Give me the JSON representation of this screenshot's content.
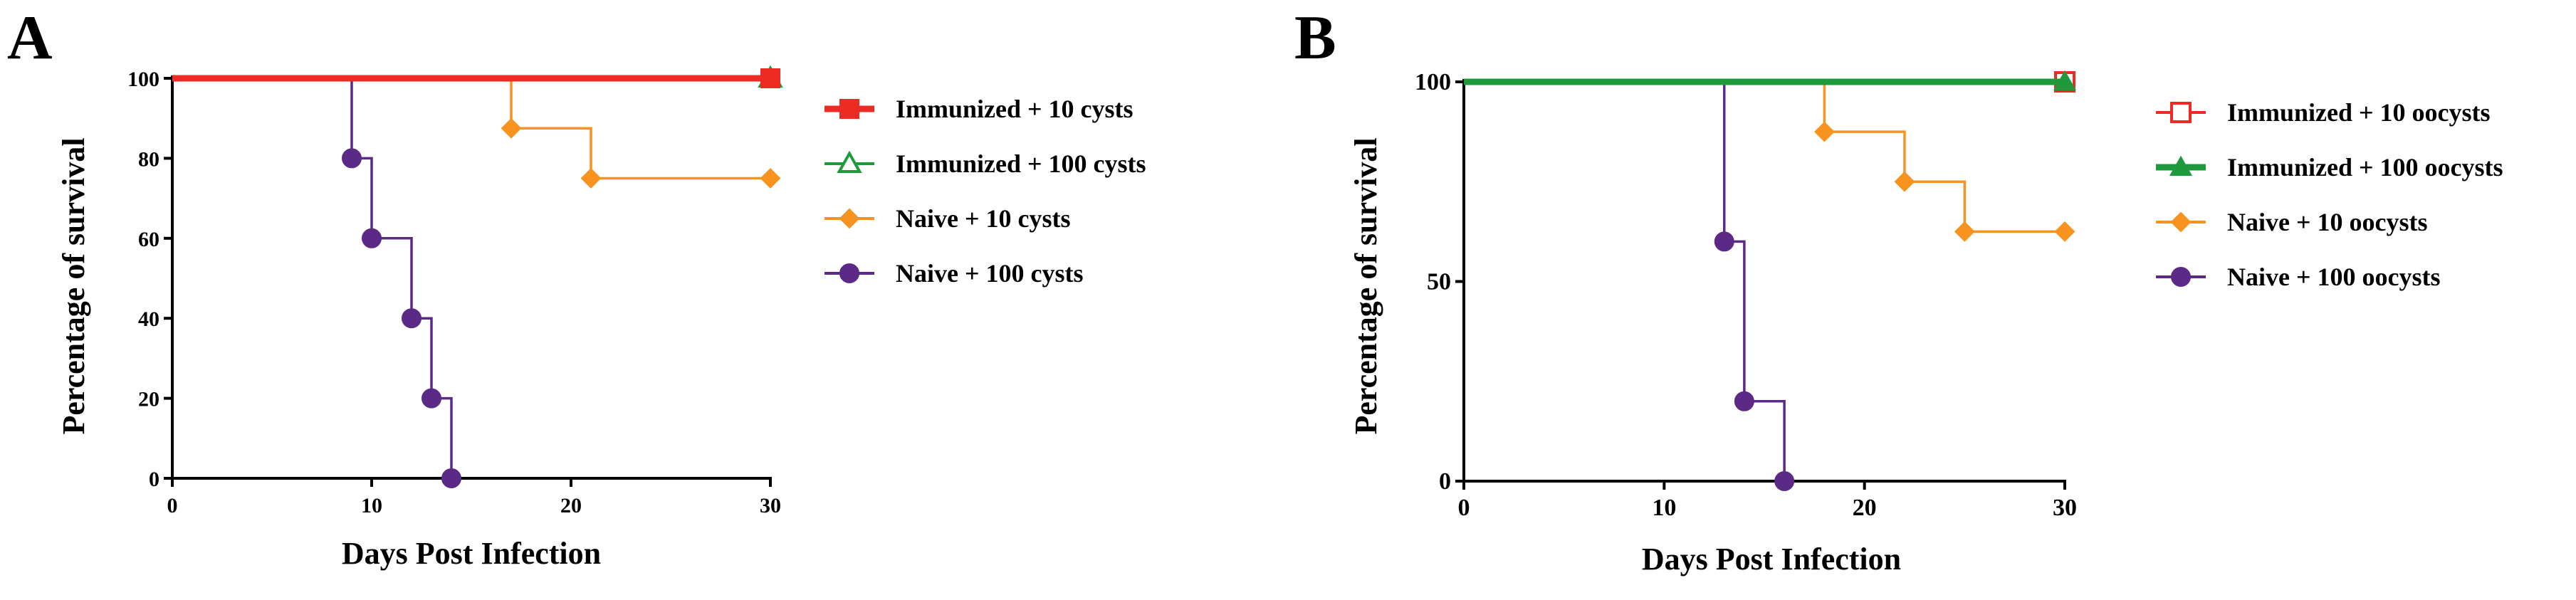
{
  "chart_data": [
    {
      "type": "line",
      "panel_label": "A",
      "xlabel": "Days Post Infection",
      "ylabel": "Percentage of survival",
      "xlim": [
        0,
        30
      ],
      "ylim": [
        0,
        100
      ],
      "xticks": [
        "0",
        "10",
        "20",
        "30"
      ],
      "yticks": [
        "0",
        "20",
        "40",
        "60",
        "80",
        "100"
      ],
      "legend_position": "right",
      "series": [
        {
          "name": "Immunized + 10 cysts",
          "color": "#ee2a24",
          "marker": "square",
          "filled": true,
          "line_weight": "thick",
          "x": [
            0,
            30
          ],
          "y": [
            100,
            100
          ],
          "markers": [
            [
              30,
              100
            ]
          ]
        },
        {
          "name": "Immunized + 100 cysts",
          "color": "#1e9a3c",
          "marker": "triangle",
          "filled": false,
          "line_weight": "normal",
          "x": [
            0,
            30
          ],
          "y": [
            100,
            100
          ],
          "markers": [
            [
              30,
              100
            ]
          ]
        },
        {
          "name": "Naive + 10 cysts",
          "color": "#f7931e",
          "marker": "diamond",
          "filled": true,
          "line_weight": "normal",
          "x": [
            0,
            17,
            21,
            30
          ],
          "y": [
            100,
            87.5,
            75,
            75
          ],
          "markers": [
            [
              17,
              87.5
            ],
            [
              21,
              75
            ],
            [
              30,
              75
            ]
          ]
        },
        {
          "name": "Naive + 100 cysts",
          "color": "#5b2a86",
          "marker": "circle",
          "filled": true,
          "line_weight": "normal",
          "x": [
            0,
            9,
            10,
            12,
            13,
            14
          ],
          "y": [
            100,
            80,
            60,
            40,
            20,
            0
          ],
          "markers": [
            [
              9,
              80
            ],
            [
              10,
              60
            ],
            [
              12,
              40
            ],
            [
              13,
              20
            ],
            [
              14,
              0
            ]
          ]
        }
      ]
    },
    {
      "type": "line",
      "panel_label": "B",
      "xlabel": "Days Post Infection",
      "ylabel": "Percentage of survival",
      "xlim": [
        0,
        30
      ],
      "ylim": [
        0,
        100
      ],
      "xticks": [
        "0",
        "10",
        "20",
        "30"
      ],
      "yticks": [
        "0",
        "50",
        "100"
      ],
      "legend_position": "right",
      "series": [
        {
          "name": "Immunized + 10 oocysts",
          "color": "#ee2a24",
          "marker": "square",
          "filled": false,
          "line_weight": "normal",
          "x": [
            0,
            30
          ],
          "y": [
            100,
            100
          ],
          "markers": [
            [
              30,
              100
            ]
          ]
        },
        {
          "name": "Immunized + 100 oocysts",
          "color": "#1e9a3c",
          "marker": "triangle",
          "filled": true,
          "line_weight": "thick",
          "x": [
            0,
            30
          ],
          "y": [
            100,
            100
          ],
          "markers": [
            [
              30,
              100
            ]
          ]
        },
        {
          "name": "Naive + 10 oocysts",
          "color": "#f7931e",
          "marker": "diamond",
          "filled": true,
          "line_weight": "normal",
          "x": [
            0,
            18,
            22,
            25,
            30
          ],
          "y": [
            100,
            87.5,
            75,
            62.5,
            62.5
          ],
          "markers": [
            [
              18,
              87.5
            ],
            [
              22,
              75
            ],
            [
              25,
              62.5
            ],
            [
              30,
              62.5
            ]
          ]
        },
        {
          "name": "Naive + 100 oocysts",
          "color": "#5b2a86",
          "marker": "circle",
          "filled": true,
          "line_weight": "normal",
          "x": [
            0,
            13,
            14,
            16
          ],
          "y": [
            100,
            60,
            20,
            0
          ],
          "markers": [
            [
              13,
              60
            ],
            [
              14,
              20
            ],
            [
              16,
              0
            ]
          ]
        }
      ]
    }
  ]
}
